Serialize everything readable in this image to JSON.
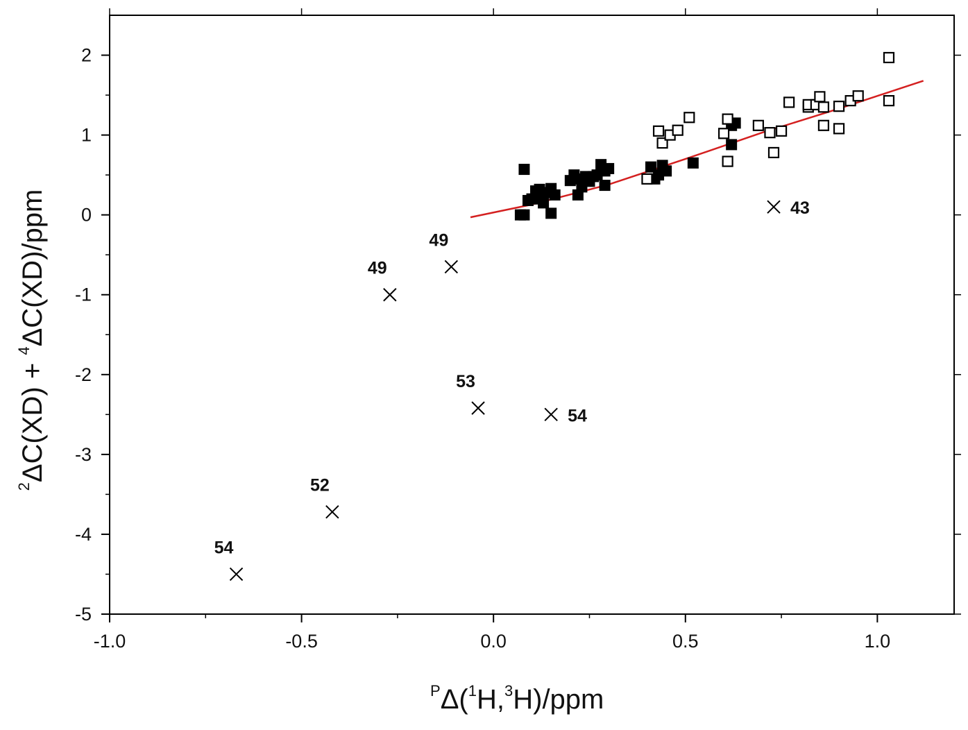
{
  "chart_data": {
    "type": "scatter",
    "title": "",
    "xlabel": {
      "sup_p": "P",
      "delta": "Δ(",
      "sup1": "1",
      "h1": "H,",
      "sup3": "3",
      "h2": "H)/ppm"
    },
    "ylabel": {
      "sup2": "2",
      "part1": "ΔC(XD) + ",
      "sup4": "4",
      "part2": "ΔC(XD)/ppm"
    },
    "xlim": [
      -1.0,
      1.2
    ],
    "ylim": [
      -5,
      2.5
    ],
    "x_ticks": [
      {
        "value": -1.0,
        "label": "-1.0"
      },
      {
        "value": -0.5,
        "label": "-0.5"
      },
      {
        "value": 0.0,
        "label": "0.0"
      },
      {
        "value": 0.5,
        "label": "0.5"
      },
      {
        "value": 1.0,
        "label": "1.0"
      }
    ],
    "y_ticks": [
      {
        "value": 2,
        "label": "2"
      },
      {
        "value": 1,
        "label": "1"
      },
      {
        "value": 0,
        "label": "0"
      },
      {
        "value": -1,
        "label": "-1"
      },
      {
        "value": -2,
        "label": "-2"
      },
      {
        "value": -3,
        "label": "-3"
      },
      {
        "value": -4,
        "label": "-4"
      },
      {
        "value": -5,
        "label": "-5"
      }
    ],
    "grid": false,
    "series": [
      {
        "marker": "filled-square",
        "color": "#000000",
        "points": [
          [
            0.07,
            0.0
          ],
          [
            0.08,
            0.0
          ],
          [
            0.08,
            0.57
          ],
          [
            0.09,
            0.18
          ],
          [
            0.1,
            0.2
          ],
          [
            0.11,
            0.3
          ],
          [
            0.12,
            0.2
          ],
          [
            0.12,
            0.32
          ],
          [
            0.13,
            0.15
          ],
          [
            0.14,
            0.28
          ],
          [
            0.15,
            0.02
          ],
          [
            0.15,
            0.33
          ],
          [
            0.16,
            0.25
          ],
          [
            0.2,
            0.43
          ],
          [
            0.21,
            0.5
          ],
          [
            0.22,
            0.45
          ],
          [
            0.22,
            0.25
          ],
          [
            0.23,
            0.35
          ],
          [
            0.24,
            0.48
          ],
          [
            0.25,
            0.42
          ],
          [
            0.26,
            0.48
          ],
          [
            0.27,
            0.5
          ],
          [
            0.28,
            0.63
          ],
          [
            0.29,
            0.37
          ],
          [
            0.29,
            0.55
          ],
          [
            0.3,
            0.58
          ],
          [
            0.41,
            0.6
          ],
          [
            0.42,
            0.45
          ],
          [
            0.43,
            0.5
          ],
          [
            0.44,
            0.62
          ],
          [
            0.45,
            0.55
          ],
          [
            0.52,
            0.65
          ],
          [
            0.62,
            0.88
          ],
          [
            0.62,
            1.12
          ],
          [
            0.63,
            1.15
          ]
        ]
      },
      {
        "marker": "open-square",
        "color": "#000000",
        "points": [
          [
            0.4,
            0.45
          ],
          [
            0.43,
            1.05
          ],
          [
            0.44,
            0.9
          ],
          [
            0.46,
            1.0
          ],
          [
            0.48,
            1.06
          ],
          [
            0.51,
            1.22
          ],
          [
            0.6,
            1.02
          ],
          [
            0.61,
            1.2
          ],
          [
            0.61,
            0.67
          ],
          [
            0.69,
            1.12
          ],
          [
            0.72,
            1.03
          ],
          [
            0.73,
            0.78
          ],
          [
            0.75,
            1.05
          ],
          [
            0.77,
            1.41
          ],
          [
            0.82,
            1.35
          ],
          [
            0.82,
            1.38
          ],
          [
            0.84,
            1.38
          ],
          [
            0.85,
            1.48
          ],
          [
            0.86,
            1.35
          ],
          [
            0.86,
            1.12
          ],
          [
            0.9,
            1.08
          ],
          [
            0.9,
            1.36
          ],
          [
            0.93,
            1.43
          ],
          [
            0.95,
            1.49
          ],
          [
            1.03,
            1.97
          ],
          [
            1.03,
            1.43
          ]
        ]
      },
      {
        "marker": "cross",
        "color": "#000000",
        "points": [
          {
            "x": -0.67,
            "y": -4.5,
            "label": "54",
            "label_pos": "above"
          },
          {
            "x": -0.42,
            "y": -3.72,
            "label": "52",
            "label_pos": "above"
          },
          {
            "x": -0.27,
            "y": -1.0,
            "label": "49",
            "label_pos": "above"
          },
          {
            "x": -0.11,
            "y": -0.65,
            "label": "49",
            "label_pos": "above"
          },
          {
            "x": -0.04,
            "y": -2.42,
            "label": "53",
            "label_pos": "above"
          },
          {
            "x": 0.15,
            "y": -2.5,
            "label": "54",
            "label_pos": "right"
          },
          {
            "x": 0.73,
            "y": 0.1,
            "label": "43",
            "label_pos": "right"
          }
        ]
      }
    ],
    "fit_line": {
      "color": "#d42020",
      "points": [
        [
          -0.06,
          -0.03
        ],
        [
          0.1,
          0.13
        ],
        [
          0.3,
          0.38
        ],
        [
          0.5,
          0.7
        ],
        [
          0.7,
          1.03
        ],
        [
          0.9,
          1.33
        ],
        [
          1.12,
          1.68
        ]
      ]
    }
  }
}
